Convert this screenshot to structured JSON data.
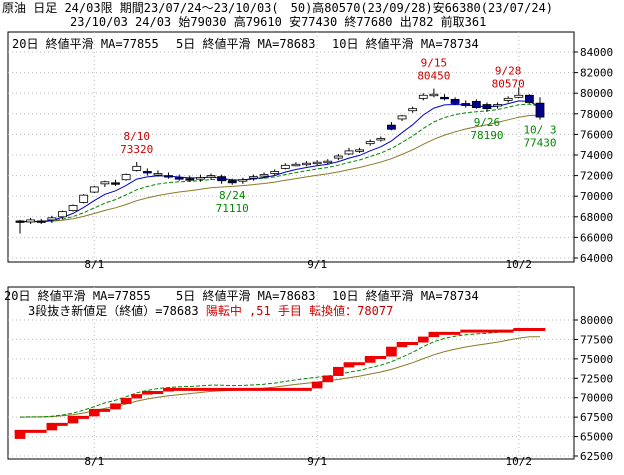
{
  "header": {
    "line1": "原油 日足 24/03限 期間23/07/24～23/10/03(　50)高80570(23/09/28)安66380(23/07/24)",
    "line2": "23/10/03 24/03 始79030 高79610 安77430 終77680 出782 前取361"
  },
  "colors": {
    "ma20": "#8b7a28",
    "ma5": "#0000cc",
    "ma10": "#008800",
    "ann_red": "#cc0000",
    "ann_green": "#008800",
    "renko_up": "#ee0000",
    "grid": "#bbbbbb",
    "candle_down": "#000088"
  },
  "legend": {
    "ma20": "20日 終値平滑 MA=77855",
    "ma5": "5日 終値平滑 MA=78683",
    "ma10": "10日 終値平滑 MA=78734"
  },
  "lower_info": {
    "prefix": "3段抜き新値足（終値）=78683 ",
    "status": "陽転中 ,51 手目 ",
    "conv": "転換値：78077"
  },
  "chart_data": [
    {
      "type": "candlestick",
      "title": "原油 日足 24/03限",
      "ylim": [
        64000,
        84000
      ],
      "yticks": [
        64000,
        66000,
        68000,
        70000,
        72000,
        74000,
        76000,
        78000,
        80000,
        82000,
        84000
      ],
      "xtick_labels": [
        {
          "i": 7,
          "label": "8/1"
        },
        {
          "i": 28,
          "label": "9/1"
        },
        {
          "i": 47,
          "label": "10/2"
        }
      ],
      "candles": [
        {
          "o": 67600,
          "h": 67700,
          "l": 66380,
          "c": 67500
        },
        {
          "o": 67500,
          "h": 67900,
          "l": 67300,
          "c": 67700
        },
        {
          "o": 67600,
          "h": 67800,
          "l": 67300,
          "c": 67500
        },
        {
          "o": 67700,
          "h": 68100,
          "l": 67400,
          "c": 67900
        },
        {
          "o": 68000,
          "h": 68600,
          "l": 67800,
          "c": 68500
        },
        {
          "o": 68600,
          "h": 69200,
          "l": 68500,
          "c": 69100
        },
        {
          "o": 69400,
          "h": 70200,
          "l": 69300,
          "c": 70100
        },
        {
          "o": 70400,
          "h": 71000,
          "l": 70300,
          "c": 70900
        },
        {
          "o": 71200,
          "h": 71500,
          "l": 70900,
          "c": 71400
        },
        {
          "o": 71300,
          "h": 71600,
          "l": 71000,
          "c": 71200
        },
        {
          "o": 71600,
          "h": 72200,
          "l": 71500,
          "c": 72100
        },
        {
          "o": 72500,
          "h": 73320,
          "l": 72400,
          "c": 72900
        },
        {
          "o": 72400,
          "h": 72700,
          "l": 72000,
          "c": 72300
        },
        {
          "o": 72100,
          "h": 72500,
          "l": 71900,
          "c": 72200
        },
        {
          "o": 72000,
          "h": 72300,
          "l": 71700,
          "c": 71900
        },
        {
          "o": 71800,
          "h": 72100,
          "l": 71500,
          "c": 71700
        },
        {
          "o": 71700,
          "h": 72000,
          "l": 71400,
          "c": 71600
        },
        {
          "o": 71700,
          "h": 72100,
          "l": 71400,
          "c": 71800
        },
        {
          "o": 71900,
          "h": 72200,
          "l": 71600,
          "c": 72000
        },
        {
          "o": 71900,
          "h": 72100,
          "l": 71200,
          "c": 71500
        },
        {
          "o": 71500,
          "h": 71700,
          "l": 71110,
          "c": 71300
        },
        {
          "o": 71500,
          "h": 71800,
          "l": 71200,
          "c": 71600
        },
        {
          "o": 71800,
          "h": 72100,
          "l": 71500,
          "c": 71900
        },
        {
          "o": 72000,
          "h": 72300,
          "l": 71700,
          "c": 72100
        },
        {
          "o": 72200,
          "h": 72600,
          "l": 72000,
          "c": 72400
        },
        {
          "o": 72700,
          "h": 73200,
          "l": 72600,
          "c": 73000
        },
        {
          "o": 73100,
          "h": 73300,
          "l": 72900,
          "c": 73100
        },
        {
          "o": 73200,
          "h": 73400,
          "l": 72900,
          "c": 73200
        },
        {
          "o": 73300,
          "h": 73500,
          "l": 73000,
          "c": 73300
        },
        {
          "o": 73300,
          "h": 73600,
          "l": 73100,
          "c": 73400
        },
        {
          "o": 73700,
          "h": 74100,
          "l": 73500,
          "c": 73900
        },
        {
          "o": 74100,
          "h": 74700,
          "l": 74000,
          "c": 74400
        },
        {
          "o": 74400,
          "h": 74700,
          "l": 74200,
          "c": 74500
        },
        {
          "o": 75100,
          "h": 75500,
          "l": 74900,
          "c": 75300
        },
        {
          "o": 75500,
          "h": 75800,
          "l": 75300,
          "c": 75600
        },
        {
          "o": 76900,
          "h": 77200,
          "l": 76400,
          "c": 76500
        },
        {
          "o": 77500,
          "h": 77900,
          "l": 77300,
          "c": 77800
        },
        {
          "o": 78300,
          "h": 78700,
          "l": 78100,
          "c": 78500
        },
        {
          "o": 79500,
          "h": 80000,
          "l": 79300,
          "c": 79800
        },
        {
          "o": 79800,
          "h": 80450,
          "l": 79600,
          "c": 79900
        },
        {
          "o": 79600,
          "h": 79900,
          "l": 79300,
          "c": 79500
        },
        {
          "o": 79400,
          "h": 79600,
          "l": 78900,
          "c": 79000
        },
        {
          "o": 79000,
          "h": 79300,
          "l": 78600,
          "c": 78800
        },
        {
          "o": 79200,
          "h": 79400,
          "l": 78500,
          "c": 78600
        },
        {
          "o": 78900,
          "h": 79100,
          "l": 78190,
          "c": 78500
        },
        {
          "o": 78800,
          "h": 79100,
          "l": 78500,
          "c": 78900
        },
        {
          "o": 79300,
          "h": 79700,
          "l": 79100,
          "c": 79500
        },
        {
          "o": 79600,
          "h": 80570,
          "l": 79500,
          "c": 79800
        },
        {
          "o": 79800,
          "h": 79900,
          "l": 79000,
          "c": 79100
        },
        {
          "o": 79030,
          "h": 79610,
          "l": 77430,
          "c": 77680
        }
      ],
      "ma5_end": 78683,
      "ma10_end": 78734,
      "ma20_end": 77855,
      "annotations": [
        {
          "i": 11,
          "label": "8/10",
          "value": "73320",
          "pos": "above",
          "color": "red"
        },
        {
          "i": 20,
          "label": "8/24",
          "value": "71110",
          "pos": "below",
          "color": "green"
        },
        {
          "i": 39,
          "label": "9/15",
          "value": "80450",
          "pos": "above",
          "color": "red"
        },
        {
          "i": 44,
          "label": "9/26",
          "value": "78190",
          "pos": "below",
          "color": "green"
        },
        {
          "i": 46,
          "label": "9/28",
          "value": "80570",
          "pos": "above",
          "color": "red"
        },
        {
          "i": 49,
          "label": "10/ 3",
          "value": "77430",
          "pos": "below",
          "color": "green"
        }
      ]
    },
    {
      "type": "renko",
      "title": "3段抜き新値足（終値）",
      "ylim": [
        62500,
        80000
      ],
      "yticks": [
        62500,
        65000,
        67500,
        70000,
        72500,
        75000,
        77500,
        80000
      ],
      "bricks": [
        {
          "i": 0,
          "lo": 64700,
          "hi": 65800
        },
        {
          "i": 3,
          "lo": 65800,
          "hi": 66700
        },
        {
          "i": 5,
          "lo": 66700,
          "hi": 67600
        },
        {
          "i": 7,
          "lo": 67600,
          "hi": 68500
        },
        {
          "i": 9,
          "lo": 68500,
          "hi": 69200
        },
        {
          "i": 10,
          "lo": 69200,
          "hi": 69900
        },
        {
          "i": 11,
          "lo": 69900,
          "hi": 70400
        },
        {
          "i": 12,
          "lo": 70400,
          "hi": 70800
        },
        {
          "i": 14,
          "lo": 70800,
          "hi": 71200
        },
        {
          "i": 28,
          "lo": 71200,
          "hi": 72000
        },
        {
          "i": 29,
          "lo": 72000,
          "hi": 72800
        },
        {
          "i": 30,
          "lo": 72800,
          "hi": 73900
        },
        {
          "i": 31,
          "lo": 73900,
          "hi": 74500
        },
        {
          "i": 33,
          "lo": 74500,
          "hi": 75300
        },
        {
          "i": 35,
          "lo": 75300,
          "hi": 76500
        },
        {
          "i": 36,
          "lo": 76500,
          "hi": 77100
        },
        {
          "i": 38,
          "lo": 77100,
          "hi": 77800
        },
        {
          "i": 39,
          "lo": 77800,
          "hi": 78400
        },
        {
          "i": 42,
          "lo": 78400,
          "hi": 78700
        },
        {
          "i": 47,
          "lo": 78700,
          "hi": 78900
        }
      ],
      "line_end": 78683
    }
  ]
}
